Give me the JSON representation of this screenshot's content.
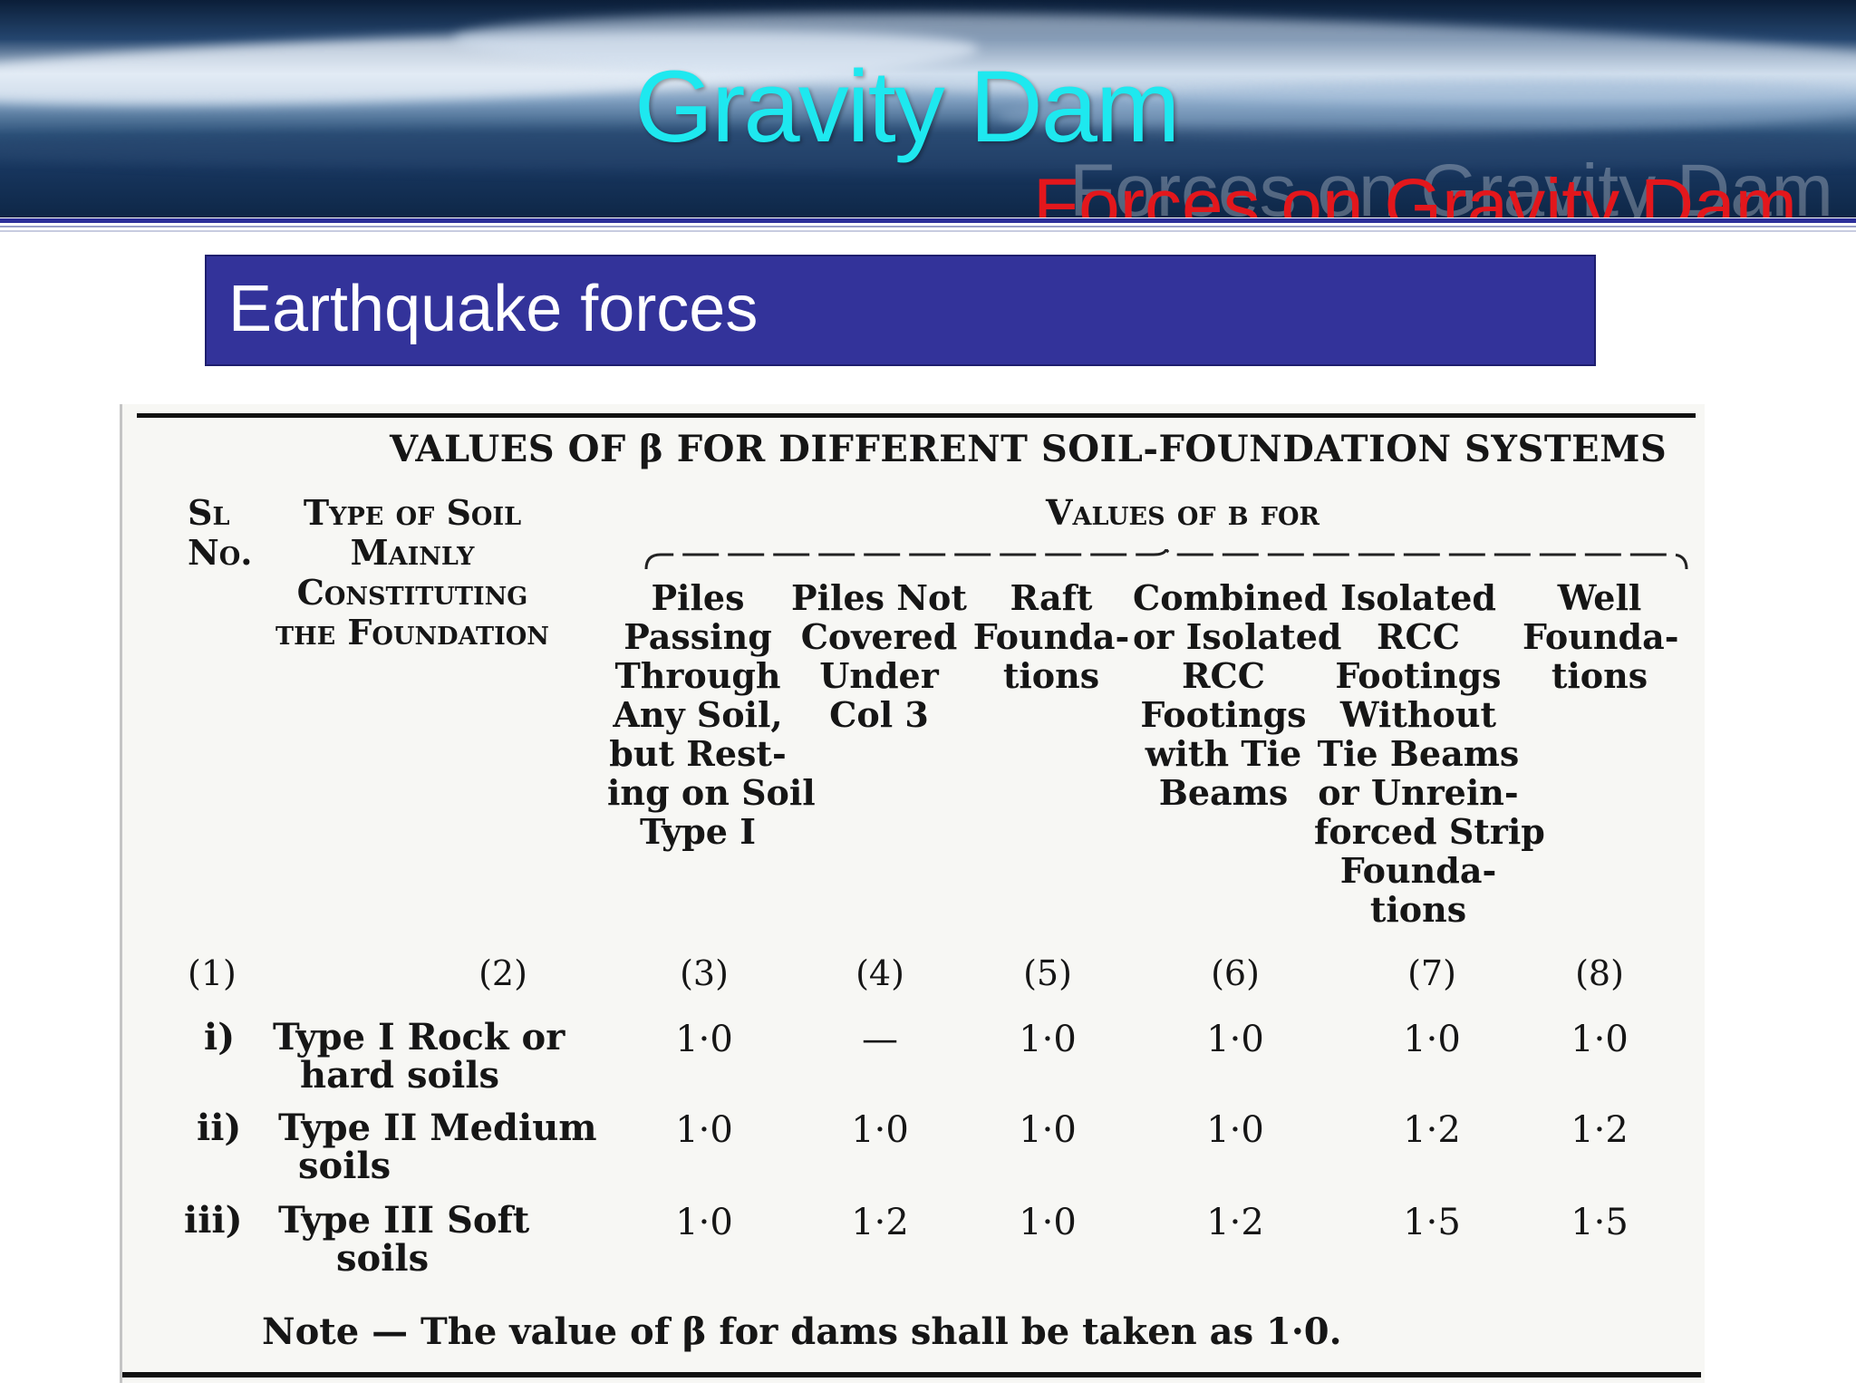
{
  "slide": {
    "title": "Gravity Dam",
    "subtitle": "Forces on Gravity Dam",
    "heading": "Earthquake forces"
  },
  "table": {
    "caption": "VALUES OF β FOR DIFFERENT SOIL-FOUNDATION  SYSTEMS",
    "col1_header": [
      "Sl",
      "No."
    ],
    "col2_header": [
      "Type of Soil",
      "Mainly",
      "Constituting",
      "the Foundation"
    ],
    "group_header": "Values of β for",
    "columns": [
      [
        "Piles",
        "Passing",
        "Through",
        "Any Soil,",
        "but Rest-",
        "ing on Soil",
        "Type I"
      ],
      [
        "Piles Not",
        "Covered",
        "Under",
        "Col 3"
      ],
      [
        "Raft",
        "Founda-",
        "tions"
      ],
      [
        "Combined",
        "or Isolated",
        "RCC",
        "Footings",
        "with Tie",
        "Beams"
      ],
      [
        "Isolated",
        "RCC",
        "Footings",
        "Without",
        "Tie Beams",
        "or Unrein-",
        "forced Strip",
        "Founda-",
        "tions"
      ],
      [
        "Well",
        "Founda-",
        "tions"
      ]
    ],
    "column_numbers": [
      "(1)",
      "(2)",
      "(3)",
      "(4)",
      "(5)",
      "(6)",
      "(7)",
      "(8)"
    ],
    "rows": [
      {
        "sl": "i)",
        "soil": [
          "Type I Rock  or",
          "hard  soils"
        ],
        "values": [
          "1·0",
          "—",
          "1·0",
          "1·0",
          "1·0",
          "1·0"
        ]
      },
      {
        "sl": "ii)",
        "soil": [
          "Type II Medium",
          "soils"
        ],
        "values": [
          "1·0",
          "1·0",
          "1·0",
          "1·0",
          "1·2",
          "1·2"
        ]
      },
      {
        "sl": "iii)",
        "soil": [
          "Type   III     Soft",
          "soils"
        ],
        "values": [
          "1·0",
          "1·2",
          "1·0",
          "1·2",
          "1·5",
          "1·5"
        ]
      }
    ],
    "note": "Note — The value of β for dams shall be taken as 1·0."
  }
}
